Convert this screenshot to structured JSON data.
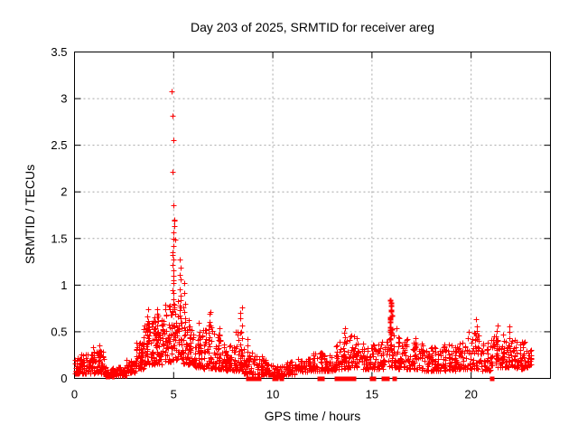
{
  "page": {
    "background": "#ffffff"
  },
  "chart_data": {
    "type": "scatter",
    "title": "Day 203 of 2025, SRMTID for receiver areg",
    "xlabel": "GPS time / hours",
    "ylabel": "SRMTID / TECUs",
    "xlim": [
      0,
      24
    ],
    "ylim": [
      0,
      3.5
    ],
    "xticks": [
      0,
      5,
      10,
      15,
      20
    ],
    "xtick_labels": [
      "0",
      "5",
      "10",
      "15",
      "20"
    ],
    "yticks": [
      0,
      0.5,
      1,
      1.5,
      2,
      2.5,
      3,
      3.5
    ],
    "ytick_labels": [
      "0",
      "0.5",
      "1",
      "1.5",
      "2",
      "2.5",
      "3",
      "3.5"
    ],
    "grid": true,
    "legend_shown": false,
    "marker": "plus",
    "marker_color": "#ff0000",
    "axis_color": "#000000",
    "grid_color": "#a6a6a6",
    "series_name": "SRMTID",
    "peak_points": [
      [
        4.89,
        3.08
      ],
      [
        4.93,
        2.82
      ],
      [
        4.97,
        2.55
      ],
      [
        4.93,
        2.22
      ],
      [
        4.97,
        1.86
      ],
      [
        5.03,
        1.7
      ],
      [
        5.05,
        1.69
      ],
      [
        5.02,
        1.63
      ],
      [
        4.97,
        1.57
      ],
      [
        5.07,
        1.49
      ]
    ],
    "spike_columns": [
      [
        0.4,
        0.1,
        0.28,
        5,
        0
      ],
      [
        0.95,
        0.15,
        0.33,
        6,
        0
      ],
      [
        1.3,
        0.12,
        0.34,
        6,
        0
      ],
      [
        3.45,
        0.25,
        0.5,
        6,
        0
      ],
      [
        3.7,
        0.35,
        0.72,
        10,
        0
      ],
      [
        4.15,
        0.35,
        0.74,
        10,
        0
      ],
      [
        4.45,
        0.3,
        0.6,
        8,
        0
      ],
      [
        4.95,
        0.8,
        1.48,
        14,
        0
      ],
      [
        5.35,
        0.6,
        1.28,
        10,
        0
      ],
      [
        5.55,
        0.45,
        1.0,
        7,
        0
      ],
      [
        5.8,
        0.3,
        0.65,
        6,
        0
      ],
      [
        6.3,
        0.25,
        0.58,
        6,
        0
      ],
      [
        6.8,
        0.3,
        0.73,
        9,
        0
      ],
      [
        7.3,
        0.25,
        0.55,
        6,
        0
      ],
      [
        8.4,
        0.25,
        0.74,
        9,
        0
      ],
      [
        8.7,
        0.15,
        0.42,
        5,
        0
      ],
      [
        13.6,
        0.2,
        0.55,
        7,
        0
      ],
      [
        15.95,
        0.45,
        0.83,
        14,
        1
      ],
      [
        16.3,
        0.2,
        0.52,
        6,
        0
      ],
      [
        17.2,
        0.2,
        0.45,
        5,
        0
      ],
      [
        20.3,
        0.25,
        0.63,
        8,
        0
      ],
      [
        21.3,
        0.2,
        0.55,
        7,
        0
      ],
      [
        21.9,
        0.2,
        0.55,
        7,
        0
      ],
      [
        22.5,
        0.15,
        0.42,
        6,
        0
      ]
    ],
    "band_bins": [
      [
        0.0,
        0.5,
        0.05,
        0.22,
        40
      ],
      [
        0.5,
        1.0,
        0.05,
        0.26,
        40
      ],
      [
        1.0,
        1.5,
        0.04,
        0.3,
        40
      ],
      [
        1.5,
        2.0,
        0.02,
        0.12,
        45
      ],
      [
        2.0,
        2.6,
        0.03,
        0.13,
        50
      ],
      [
        2.6,
        3.1,
        0.06,
        0.2,
        45
      ],
      [
        3.1,
        3.5,
        0.1,
        0.4,
        40
      ],
      [
        3.5,
        4.0,
        0.15,
        0.62,
        55
      ],
      [
        4.0,
        4.5,
        0.15,
        0.68,
        55
      ],
      [
        4.5,
        5.0,
        0.18,
        0.8,
        55
      ],
      [
        5.0,
        5.5,
        0.2,
        0.85,
        55
      ],
      [
        5.5,
        6.0,
        0.15,
        0.62,
        50
      ],
      [
        6.0,
        6.5,
        0.12,
        0.5,
        45
      ],
      [
        6.5,
        7.0,
        0.1,
        0.58,
        45
      ],
      [
        7.0,
        7.5,
        0.1,
        0.48,
        45
      ],
      [
        7.5,
        8.0,
        0.08,
        0.36,
        45
      ],
      [
        8.0,
        8.5,
        0.08,
        0.5,
        45
      ],
      [
        8.5,
        9.0,
        0.05,
        0.32,
        40
      ],
      [
        9.0,
        9.5,
        0.04,
        0.24,
        40
      ],
      [
        9.5,
        10.0,
        0.04,
        0.2,
        40
      ],
      [
        10.0,
        10.6,
        0.02,
        0.14,
        40
      ],
      [
        10.6,
        11.2,
        0.04,
        0.18,
        45
      ],
      [
        11.2,
        12.0,
        0.07,
        0.22,
        55
      ],
      [
        12.0,
        12.6,
        0.08,
        0.28,
        45
      ],
      [
        12.6,
        13.2,
        0.08,
        0.26,
        45
      ],
      [
        13.2,
        13.8,
        0.1,
        0.42,
        45
      ],
      [
        13.8,
        14.4,
        0.12,
        0.46,
        45
      ],
      [
        14.4,
        15.0,
        0.1,
        0.38,
        45
      ],
      [
        15.0,
        15.6,
        0.1,
        0.42,
        45
      ],
      [
        15.6,
        16.2,
        0.12,
        0.5,
        45
      ],
      [
        16.2,
        16.8,
        0.1,
        0.45,
        45
      ],
      [
        16.8,
        17.4,
        0.1,
        0.42,
        45
      ],
      [
        17.4,
        18.0,
        0.08,
        0.38,
        45
      ],
      [
        18.0,
        18.6,
        0.08,
        0.34,
        45
      ],
      [
        18.6,
        19.2,
        0.08,
        0.38,
        45
      ],
      [
        19.2,
        19.8,
        0.1,
        0.4,
        45
      ],
      [
        19.8,
        20.4,
        0.1,
        0.5,
        45
      ],
      [
        20.4,
        21.0,
        0.08,
        0.4,
        45
      ],
      [
        21.0,
        21.6,
        0.12,
        0.52,
        45
      ],
      [
        21.6,
        22.2,
        0.12,
        0.5,
        45
      ],
      [
        22.2,
        22.7,
        0.1,
        0.42,
        40
      ],
      [
        22.7,
        23.05,
        0.12,
        0.35,
        30
      ]
    ],
    "zero_value_marks_x": [
      8.75,
      8.95,
      9.05,
      9.15,
      9.3,
      10.1,
      10.2,
      10.45,
      12.35,
      12.5,
      13.25,
      13.45,
      13.6,
      13.75,
      13.95,
      14.1,
      15.0,
      15.1,
      15.6,
      15.8,
      16.15,
      21.05
    ]
  }
}
